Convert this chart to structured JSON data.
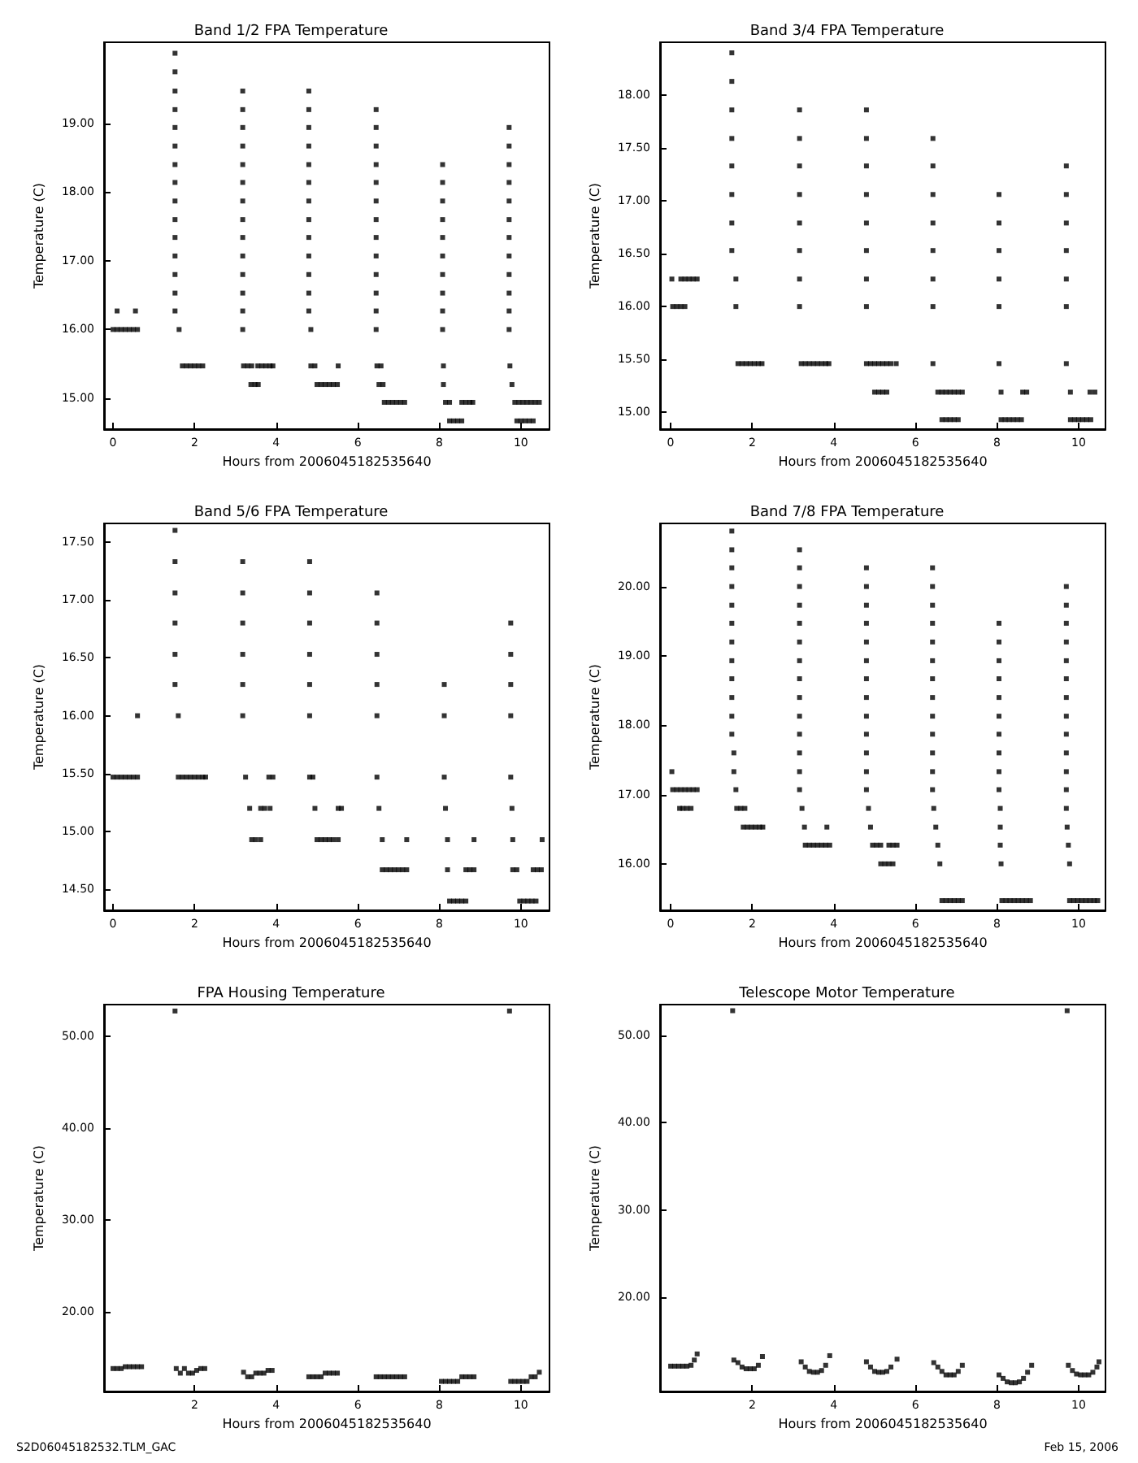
{
  "chart_data": [
    {
      "type": "scatter",
      "title": "Band 1/2 FPA Temperature",
      "xlabel": "Hours from 2006045182535640",
      "ylabel": "Temperature (C)",
      "marker": "square",
      "xlim": [
        -0.22,
        10.7
      ],
      "ylim": [
        14.55,
        20.18
      ],
      "xticks": [
        0,
        2,
        4,
        6,
        8,
        10
      ],
      "yticks": [
        {
          "value": 15,
          "label": "15.00"
        },
        {
          "value": 16,
          "label": "16.00"
        },
        {
          "value": 17,
          "label": "17.00"
        },
        {
          "value": 18,
          "label": "18.00"
        },
        {
          "value": 19,
          "label": "19.00"
        }
      ],
      "series": [
        {
          "color": "#000000",
          "x": [
            0,
            0.1,
            0.2,
            0.3,
            0.4,
            0.5,
            0.6
          ],
          "values": [
            16.0,
            16.0,
            16.0,
            16.0,
            16.0,
            16.0,
            16.0
          ]
        },
        {
          "color": "#000000",
          "x": [
            0.1,
            0.55
          ],
          "values": [
            16.27,
            16.27
          ]
        },
        {
          "color": "#000000",
          "x": [
            1.52,
            1.52,
            1.52,
            1.52,
            1.52,
            1.52,
            1.52,
            1.52,
            1.52,
            1.52,
            1.52,
            1.52,
            1.52,
            1.52,
            1.52
          ],
          "values": [
            20.02,
            19.75,
            19.47,
            19.2,
            18.94,
            18.67,
            18.4,
            18.14,
            17.87,
            17.6,
            17.34,
            17.07,
            16.8,
            16.53,
            16.27
          ]
        },
        {
          "color": "#000000",
          "x": [
            1.62,
            1.7,
            1.8,
            1.9,
            2.0,
            2.1,
            2.2
          ],
          "values": [
            16.0,
            15.47,
            15.47,
            15.47,
            15.47,
            15.47,
            15.47
          ]
        },
        {
          "color": "#000000",
          "x": [
            3.18,
            3.18,
            3.18,
            3.18,
            3.18,
            3.18,
            3.18,
            3.18,
            3.18,
            3.18,
            3.18,
            3.18,
            3.18,
            3.18
          ],
          "values": [
            19.47,
            19.2,
            18.94,
            18.67,
            18.4,
            18.14,
            17.87,
            17.6,
            17.34,
            17.07,
            16.8,
            16.53,
            16.27,
            16.0
          ]
        },
        {
          "color": "#000000",
          "x": [
            3.2,
            3.3,
            3.4,
            3.55,
            3.65,
            3.75,
            3.85,
            3.92
          ],
          "values": [
            15.47,
            15.47,
            15.47,
            15.47,
            15.47,
            15.47,
            15.47,
            15.47
          ]
        },
        {
          "color": "#000000",
          "x": [
            3.38,
            3.48,
            3.56
          ],
          "values": [
            15.2,
            15.2,
            15.2
          ]
        },
        {
          "color": "#000000",
          "x": [
            4.8,
            4.8,
            4.8,
            4.8,
            4.8,
            4.8,
            4.8,
            4.8,
            4.8,
            4.8,
            4.8,
            4.8,
            4.8
          ],
          "values": [
            19.47,
            19.2,
            18.94,
            18.67,
            18.4,
            18.14,
            17.87,
            17.6,
            17.34,
            17.07,
            16.8,
            16.53,
            16.27
          ]
        },
        {
          "color": "#000000",
          "x": [
            4.85,
            4.85,
            4.95,
            5.52
          ],
          "values": [
            16.0,
            15.47,
            15.47,
            15.47
          ]
        },
        {
          "color": "#000000",
          "x": [
            5.0,
            5.1,
            5.2,
            5.3,
            5.4,
            5.5
          ],
          "values": [
            15.2,
            15.2,
            15.2,
            15.2,
            15.2,
            15.2
          ]
        },
        {
          "color": "#000000",
          "x": [
            6.45,
            6.45,
            6.45,
            6.45,
            6.45,
            6.45,
            6.45,
            6.45,
            6.45,
            6.45,
            6.45,
            6.45,
            6.45
          ],
          "values": [
            19.2,
            18.94,
            18.67,
            18.4,
            18.14,
            17.87,
            17.6,
            17.34,
            17.07,
            16.8,
            16.53,
            16.27,
            16.0
          ]
        },
        {
          "color": "#000000",
          "x": [
            6.47,
            6.57,
            6.52,
            6.62
          ],
          "values": [
            15.47,
            15.47,
            15.2,
            15.2
          ]
        },
        {
          "color": "#000000",
          "x": [
            6.65,
            6.75,
            6.85,
            6.95,
            7.05,
            7.15
          ],
          "values": [
            14.94,
            14.94,
            14.94,
            14.94,
            14.94,
            14.94
          ]
        },
        {
          "color": "#000000",
          "x": [
            8.08,
            8.08,
            8.08,
            8.08,
            8.08,
            8.08,
            8.08,
            8.08,
            8.08,
            8.08,
            8.1,
            8.1
          ],
          "values": [
            18.4,
            18.14,
            17.87,
            17.6,
            17.34,
            17.07,
            16.8,
            16.53,
            16.27,
            16.0,
            15.47,
            15.2
          ]
        },
        {
          "color": "#000000",
          "x": [
            8.15,
            8.25,
            8.55,
            8.65,
            8.75,
            8.82
          ],
          "values": [
            14.94,
            14.94,
            14.94,
            14.94,
            14.94,
            14.94
          ]
        },
        {
          "color": "#000000",
          "x": [
            8.25,
            8.35,
            8.45,
            8.55
          ],
          "values": [
            14.67,
            14.67,
            14.67,
            14.67
          ]
        },
        {
          "color": "#000000",
          "x": [
            9.71,
            9.71,
            9.71,
            9.71,
            9.71,
            9.71,
            9.71,
            9.71,
            9.71,
            9.71,
            9.71,
            9.71
          ],
          "values": [
            18.94,
            18.67,
            18.4,
            18.14,
            17.87,
            17.6,
            17.34,
            17.07,
            16.8,
            16.53,
            16.27,
            16.0
          ]
        },
        {
          "color": "#000000",
          "x": [
            9.73,
            9.78
          ],
          "values": [
            15.47,
            15.2
          ]
        },
        {
          "color": "#000000",
          "x": [
            9.85,
            9.95,
            10.05,
            10.15,
            10.25,
            10.35,
            10.45
          ],
          "values": [
            14.94,
            14.94,
            14.94,
            14.94,
            14.94,
            14.94,
            14.94
          ]
        },
        {
          "color": "#000000",
          "x": [
            9.9,
            10.0,
            10.1,
            10.2,
            10.3
          ],
          "values": [
            14.67,
            14.67,
            14.67,
            14.67,
            14.67
          ]
        }
      ]
    },
    {
      "type": "scatter",
      "title": "Band 3/4 FPA Temperature",
      "xlabel": "Hours from 2006045182535640",
      "ylabel": "Temperature (C)",
      "marker": "square",
      "xlim": [
        -0.26,
        10.66
      ],
      "ylim": [
        14.84,
        18.5
      ],
      "xticks": [
        0,
        2,
        4,
        6,
        8,
        10
      ],
      "yticks": [
        {
          "value": 15,
          "label": "15.00"
        },
        {
          "value": 15.5,
          "label": "15.50"
        },
        {
          "value": 16,
          "label": "16.00"
        },
        {
          "value": 16.5,
          "label": "16.50"
        },
        {
          "value": 17,
          "label": "17.00"
        },
        {
          "value": 17.5,
          "label": "17.50"
        },
        {
          "value": 18,
          "label": "18.00"
        }
      ],
      "series": [
        {
          "color": "#000000",
          "x": [
            0.03,
            0.25,
            0.35,
            0.45,
            0.55,
            0.65
          ],
          "values": [
            16.26,
            16.26,
            16.26,
            16.26,
            16.26,
            16.26
          ]
        },
        {
          "color": "#000000",
          "x": [
            0.05,
            0.15,
            0.25,
            0.35
          ],
          "values": [
            16.0,
            16.0,
            16.0,
            16.0
          ]
        },
        {
          "color": "#000000",
          "x": [
            1.5,
            1.5,
            1.5,
            1.5,
            1.5,
            1.5,
            1.5,
            1.5
          ],
          "values": [
            18.4,
            18.13,
            17.86,
            17.59,
            17.33,
            17.06,
            16.79,
            16.53
          ]
        },
        {
          "color": "#000000",
          "x": [
            1.6,
            1.6
          ],
          "values": [
            16.26,
            16.0
          ]
        },
        {
          "color": "#000000",
          "x": [
            1.65,
            1.75,
            1.85,
            1.95,
            2.05,
            2.15,
            2.24
          ],
          "values": [
            15.46,
            15.46,
            15.46,
            15.46,
            15.46,
            15.46,
            15.46
          ]
        },
        {
          "color": "#000000",
          "x": [
            3.16,
            3.16,
            3.16,
            3.16,
            3.16,
            3.16,
            3.16,
            3.16
          ],
          "values": [
            17.86,
            17.59,
            17.33,
            17.06,
            16.79,
            16.53,
            16.26,
            16.0
          ]
        },
        {
          "color": "#000000",
          "x": [
            3.2,
            3.3,
            3.4,
            3.5,
            3.6,
            3.7,
            3.8,
            3.88
          ],
          "values": [
            15.46,
            15.46,
            15.46,
            15.46,
            15.46,
            15.46,
            15.46,
            15.46
          ]
        },
        {
          "color": "#000000",
          "x": [
            4.8,
            4.8,
            4.8,
            4.8,
            4.8,
            4.8,
            4.8,
            4.8
          ],
          "values": [
            17.86,
            17.59,
            17.33,
            17.06,
            16.79,
            16.53,
            16.26,
            16.0
          ]
        },
        {
          "color": "#000000",
          "x": [
            4.8,
            4.9,
            5.0,
            5.1,
            5.2,
            5.3,
            5.4,
            5.53
          ],
          "values": [
            15.46,
            15.46,
            15.46,
            15.46,
            15.46,
            15.46,
            15.46,
            15.46
          ]
        },
        {
          "color": "#000000",
          "x": [
            5.0,
            5.1,
            5.2,
            5.3
          ],
          "values": [
            15.19,
            15.19,
            15.19,
            15.19
          ]
        },
        {
          "color": "#000000",
          "x": [
            6.43,
            6.43,
            6.43,
            6.43,
            6.43,
            6.43,
            6.43,
            6.43
          ],
          "values": [
            17.59,
            17.33,
            17.06,
            16.79,
            16.53,
            16.26,
            16.0,
            15.46
          ]
        },
        {
          "color": "#000000",
          "x": [
            6.55,
            6.65,
            6.75,
            6.85,
            6.95,
            7.05,
            7.15
          ],
          "values": [
            15.19,
            15.19,
            15.19,
            15.19,
            15.19,
            15.19,
            15.19
          ]
        },
        {
          "color": "#000000",
          "x": [
            6.65,
            6.75,
            6.85,
            6.95,
            7.05
          ],
          "values": [
            14.93,
            14.93,
            14.93,
            14.93,
            14.93
          ]
        },
        {
          "color": "#000000",
          "x": [
            8.05,
            8.05,
            8.05,
            8.05,
            8.05,
            8.05
          ],
          "values": [
            17.06,
            16.79,
            16.53,
            16.26,
            16.0,
            15.46
          ]
        },
        {
          "color": "#000000",
          "x": [
            8.1,
            8.63,
            8.73
          ],
          "values": [
            15.19,
            15.19,
            15.19
          ]
        },
        {
          "color": "#000000",
          "x": [
            8.1,
            8.2,
            8.3,
            8.4,
            8.5,
            8.6
          ],
          "values": [
            14.93,
            14.93,
            14.93,
            14.93,
            14.93,
            14.93
          ]
        },
        {
          "color": "#000000",
          "x": [
            9.7,
            9.7,
            9.7,
            9.7,
            9.7,
            9.7,
            9.7
          ],
          "values": [
            17.33,
            17.06,
            16.79,
            16.53,
            16.26,
            16.0,
            15.46
          ]
        },
        {
          "color": "#000000",
          "x": [
            9.8,
            10.28,
            10.4
          ],
          "values": [
            15.19,
            15.19,
            15.19
          ]
        },
        {
          "color": "#000000",
          "x": [
            9.8,
            9.9,
            10.0,
            10.1,
            10.2,
            10.3
          ],
          "values": [
            14.93,
            14.93,
            14.93,
            14.93,
            14.93,
            14.93
          ]
        }
      ]
    },
    {
      "type": "scatter",
      "title": "Band 5/6 FPA Temperature",
      "xlabel": "Hours from 2006045182535640",
      "ylabel": "Temperature (C)",
      "marker": "square",
      "xlim": [
        -0.22,
        10.7
      ],
      "ylim": [
        14.32,
        17.66
      ],
      "xticks": [
        0,
        2,
        4,
        6,
        8,
        10
      ],
      "yticks": [
        {
          "value": 14.5,
          "label": "14.50"
        },
        {
          "value": 15,
          "label": "15.00"
        },
        {
          "value": 15.5,
          "label": "15.50"
        },
        {
          "value": 16,
          "label": "16.00"
        },
        {
          "value": 16.5,
          "label": "16.50"
        },
        {
          "value": 17,
          "label": "17.00"
        },
        {
          "value": 17.5,
          "label": "17.50"
        }
      ],
      "series": [
        {
          "color": "#000000",
          "x": [
            0,
            0.1,
            0.2,
            0.3,
            0.4,
            0.5,
            0.6
          ],
          "values": [
            15.47,
            15.47,
            15.47,
            15.47,
            15.47,
            15.47,
            15.47
          ]
        },
        {
          "color": "#000000",
          "x": [
            0.6
          ],
          "values": [
            16.0
          ]
        },
        {
          "color": "#000000",
          "x": [
            1.52,
            1.52,
            1.52,
            1.52,
            1.52,
            1.52
          ],
          "values": [
            17.6,
            17.33,
            17.06,
            16.8,
            16.53,
            16.27
          ]
        },
        {
          "color": "#000000",
          "x": [
            1.6,
            1.6,
            1.7,
            1.8,
            1.9,
            2.0,
            2.1,
            2.2,
            2.27
          ],
          "values": [
            16.0,
            15.47,
            15.47,
            15.47,
            15.47,
            15.47,
            15.47,
            15.47,
            15.47
          ]
        },
        {
          "color": "#000000",
          "x": [
            3.18,
            3.18,
            3.18,
            3.18,
            3.18,
            3.18
          ],
          "values": [
            17.33,
            17.06,
            16.8,
            16.53,
            16.27,
            16.0
          ]
        },
        {
          "color": "#000000",
          "x": [
            3.25,
            3.82,
            3.92
          ],
          "values": [
            15.47,
            15.47,
            15.47
          ]
        },
        {
          "color": "#000000",
          "x": [
            3.35,
            3.62,
            3.72,
            3.85
          ],
          "values": [
            15.2,
            15.2,
            15.2,
            15.2
          ]
        },
        {
          "color": "#000000",
          "x": [
            3.4,
            3.5,
            3.62
          ],
          "values": [
            14.93,
            14.93,
            14.93
          ]
        },
        {
          "color": "#000000",
          "x": [
            4.82,
            4.82,
            4.82,
            4.82,
            4.82,
            4.82
          ],
          "values": [
            17.33,
            17.06,
            16.8,
            16.53,
            16.27,
            16.0
          ]
        },
        {
          "color": "#000000",
          "x": [
            4.82,
            4.9,
            4.95,
            5.52,
            5.6
          ],
          "values": [
            15.47,
            15.47,
            15.2,
            15.2,
            15.2
          ]
        },
        {
          "color": "#000000",
          "x": [
            5.0,
            5.1,
            5.2,
            5.3,
            5.4,
            5.52
          ],
          "values": [
            14.93,
            14.93,
            14.93,
            14.93,
            14.93,
            14.93
          ]
        },
        {
          "color": "#000000",
          "x": [
            6.47,
            6.47,
            6.47,
            6.47,
            6.47,
            6.47
          ],
          "values": [
            17.06,
            16.8,
            16.53,
            16.27,
            16.0,
            15.47
          ]
        },
        {
          "color": "#000000",
          "x": [
            6.52,
            6.6,
            7.2
          ],
          "values": [
            15.2,
            14.93,
            14.93
          ]
        },
        {
          "color": "#000000",
          "x": [
            6.6,
            6.7,
            6.8,
            6.9,
            7.0,
            7.1,
            7.2
          ],
          "values": [
            14.67,
            14.67,
            14.67,
            14.67,
            14.67,
            14.67,
            14.67
          ]
        },
        {
          "color": "#000000",
          "x": [
            8.12,
            8.12,
            8.12
          ],
          "values": [
            16.27,
            16.0,
            15.47
          ]
        },
        {
          "color": "#000000",
          "x": [
            8.15,
            8.2,
            8.85
          ],
          "values": [
            15.2,
            14.93,
            14.93
          ]
        },
        {
          "color": "#000000",
          "x": [
            8.2,
            8.65,
            8.75,
            8.85
          ],
          "values": [
            14.67,
            14.67,
            14.67,
            14.67
          ]
        },
        {
          "color": "#000000",
          "x": [
            8.25,
            8.35,
            8.45,
            8.55,
            8.65
          ],
          "values": [
            14.4,
            14.4,
            14.4,
            14.4,
            14.4
          ]
        },
        {
          "color": "#000000",
          "x": [
            9.75,
            9.75,
            9.75,
            9.75,
            9.75
          ],
          "values": [
            16.8,
            16.53,
            16.27,
            16.0,
            15.47
          ]
        },
        {
          "color": "#000000",
          "x": [
            9.78,
            9.8,
            10.52
          ],
          "values": [
            15.2,
            14.93,
            14.93
          ]
        },
        {
          "color": "#000000",
          "x": [
            9.8,
            9.9,
            10.3,
            10.4,
            10.5
          ],
          "values": [
            14.67,
            14.67,
            14.67,
            14.67,
            14.67
          ]
        },
        {
          "color": "#000000",
          "x": [
            9.97,
            10.07,
            10.17,
            10.27,
            10.37
          ],
          "values": [
            14.4,
            14.4,
            14.4,
            14.4,
            14.4
          ]
        }
      ]
    },
    {
      "type": "scatter",
      "title": "Band 7/8 FPA Temperature",
      "xlabel": "Hours from 2006045182535640",
      "ylabel": "Temperature (C)",
      "marker": "square",
      "xlim": [
        -0.26,
        10.66
      ],
      "ylim": [
        15.33,
        20.91
      ],
      "xticks": [
        0,
        2,
        4,
        6,
        8,
        10
      ],
      "yticks": [
        {
          "value": 16,
          "label": "16.00"
        },
        {
          "value": 17,
          "label": "17.00"
        },
        {
          "value": 18,
          "label": "18.00"
        },
        {
          "value": 19,
          "label": "19.00"
        },
        {
          "value": 20,
          "label": "20.00"
        }
      ],
      "series": [
        {
          "color": "#000000",
          "x": [
            0.03
          ],
          "values": [
            17.33
          ]
        },
        {
          "color": "#000000",
          "x": [
            0.05,
            0.15,
            0.25,
            0.35,
            0.45,
            0.55,
            0.65
          ],
          "values": [
            17.07,
            17.07,
            17.07,
            17.07,
            17.07,
            17.07,
            17.07
          ]
        },
        {
          "color": "#000000",
          "x": [
            0.22,
            0.3,
            0.4,
            0.5
          ],
          "values": [
            16.8,
            16.8,
            16.8,
            16.8
          ]
        },
        {
          "color": "#000000",
          "x": [
            1.5,
            1.5,
            1.5,
            1.5,
            1.5,
            1.5,
            1.5,
            1.5,
            1.5,
            1.5,
            1.5,
            1.5
          ],
          "values": [
            20.8,
            20.53,
            20.27,
            20.0,
            19.73,
            19.47,
            19.2,
            18.93,
            18.67,
            18.4,
            18.13,
            17.87
          ]
        },
        {
          "color": "#000000",
          "x": [
            1.55,
            1.55,
            1.6
          ],
          "values": [
            17.6,
            17.33,
            17.07
          ]
        },
        {
          "color": "#000000",
          "x": [
            1.62,
            1.72,
            1.82
          ],
          "values": [
            16.8,
            16.8,
            16.8
          ]
        },
        {
          "color": "#000000",
          "x": [
            1.78,
            1.88,
            1.98,
            2.08,
            2.18,
            2.26
          ],
          "values": [
            16.53,
            16.53,
            16.53,
            16.53,
            16.53,
            16.53
          ]
        },
        {
          "color": "#000000",
          "x": [
            3.16,
            3.16,
            3.16,
            3.16,
            3.16,
            3.16,
            3.16,
            3.16,
            3.16,
            3.16,
            3.16,
            3.16,
            3.16,
            3.16
          ],
          "values": [
            20.53,
            20.27,
            20.0,
            19.73,
            19.47,
            19.2,
            18.93,
            18.67,
            18.4,
            18.13,
            17.87,
            17.6,
            17.33,
            17.07
          ]
        },
        {
          "color": "#000000",
          "x": [
            3.22,
            3.28,
            3.83
          ],
          "values": [
            16.8,
            16.53,
            16.53
          ]
        },
        {
          "color": "#000000",
          "x": [
            3.3,
            3.4,
            3.5,
            3.6,
            3.7,
            3.8,
            3.9
          ],
          "values": [
            16.27,
            16.27,
            16.27,
            16.27,
            16.27,
            16.27,
            16.27
          ]
        },
        {
          "color": "#000000",
          "x": [
            4.8,
            4.8,
            4.8,
            4.8,
            4.8,
            4.8,
            4.8,
            4.8,
            4.8,
            4.8,
            4.8,
            4.8,
            4.8
          ],
          "values": [
            20.27,
            20.0,
            19.73,
            19.47,
            19.2,
            18.93,
            18.67,
            18.4,
            18.13,
            17.87,
            17.6,
            17.33,
            17.07
          ]
        },
        {
          "color": "#000000",
          "x": [
            4.85,
            4.9
          ],
          "values": [
            16.8,
            16.53
          ]
        },
        {
          "color": "#000000",
          "x": [
            4.95,
            5.05,
            5.15,
            5.35,
            5.45,
            5.55
          ],
          "values": [
            16.27,
            16.27,
            16.27,
            16.27,
            16.27,
            16.27
          ]
        },
        {
          "color": "#000000",
          "x": [
            5.15,
            5.25,
            5.35,
            5.45
          ],
          "values": [
            16.0,
            16.0,
            16.0,
            16.0
          ]
        },
        {
          "color": "#000000",
          "x": [
            6.42,
            6.42,
            6.42,
            6.42,
            6.42,
            6.42,
            6.42,
            6.42,
            6.42,
            6.42,
            6.42,
            6.42,
            6.42
          ],
          "values": [
            20.27,
            20.0,
            19.73,
            19.47,
            19.2,
            18.93,
            18.67,
            18.4,
            18.13,
            17.87,
            17.6,
            17.33,
            17.07
          ]
        },
        {
          "color": "#000000",
          "x": [
            6.45,
            6.5,
            6.55,
            6.6
          ],
          "values": [
            16.8,
            16.53,
            16.27,
            16.0
          ]
        },
        {
          "color": "#000000",
          "x": [
            6.65,
            6.75,
            6.85,
            6.95,
            7.05,
            7.15
          ],
          "values": [
            15.47,
            15.47,
            15.47,
            15.47,
            15.47,
            15.47
          ]
        },
        {
          "color": "#000000",
          "x": [
            8.05,
            8.05,
            8.05,
            8.05,
            8.05,
            8.05,
            8.05,
            8.05,
            8.05,
            8.05
          ],
          "values": [
            19.47,
            19.2,
            18.93,
            18.67,
            18.4,
            18.13,
            17.87,
            17.6,
            17.33,
            17.07
          ]
        },
        {
          "color": "#000000",
          "x": [
            8.08,
            8.08,
            8.08,
            8.1
          ],
          "values": [
            16.8,
            16.53,
            16.27,
            16.0
          ]
        },
        {
          "color": "#000000",
          "x": [
            8.12,
            8.22,
            8.32,
            8.42,
            8.52,
            8.62,
            8.72,
            8.82
          ],
          "values": [
            15.47,
            15.47,
            15.47,
            15.47,
            15.47,
            15.47,
            15.47,
            15.47
          ]
        },
        {
          "color": "#000000",
          "x": [
            9.7,
            9.7,
            9.7,
            9.7,
            9.7,
            9.7,
            9.7,
            9.7,
            9.7,
            9.7,
            9.7,
            9.7,
            9.7
          ],
          "values": [
            20.0,
            19.73,
            19.47,
            19.2,
            18.93,
            18.67,
            18.4,
            18.13,
            17.87,
            17.6,
            17.33,
            17.07,
            16.8
          ]
        },
        {
          "color": "#000000",
          "x": [
            9.72,
            9.75,
            9.78
          ],
          "values": [
            16.53,
            16.27,
            16.0
          ]
        },
        {
          "color": "#000000",
          "x": [
            9.78,
            9.88,
            9.98,
            10.08,
            10.18,
            10.28,
            10.38,
            10.47
          ],
          "values": [
            15.47,
            15.47,
            15.47,
            15.47,
            15.47,
            15.47,
            15.47,
            15.47
          ]
        }
      ]
    },
    {
      "type": "scatter",
      "title": "FPA Housing Temperature",
      "xlabel": "Hours from 2006045182535640",
      "ylabel": "Temperature (C)",
      "marker": "square",
      "xlim": [
        -0.22,
        10.7
      ],
      "ylim": [
        11.3,
        53.5
      ],
      "xticks": [
        2,
        4,
        6,
        8,
        10
      ],
      "yticks": [
        {
          "value": 20,
          "label": "20.00"
        },
        {
          "value": 30,
          "label": "30.00"
        },
        {
          "value": 40,
          "label": "40.00"
        },
        {
          "value": 50,
          "label": "50.00"
        }
      ],
      "annotations": [
        "S2D06045182532.TLM_GAC"
      ],
      "series": [
        {
          "color": "#000000",
          "x": [
            1.52,
            9.72
          ],
          "values": [
            52.8,
            52.8
          ]
        },
        {
          "color": "#000000",
          "x": [
            0,
            0.1,
            0.2,
            0.3,
            0.4,
            0.5,
            0.6,
            0.7
          ],
          "values": [
            13.8,
            13.8,
            13.8,
            14.0,
            14.0,
            14.0,
            14.0,
            14.0
          ]
        },
        {
          "color": "#000000",
          "x": [
            1.55,
            1.65,
            1.75,
            1.85,
            1.95,
            2.05,
            2.15,
            2.25
          ],
          "values": [
            13.8,
            13.3,
            13.8,
            13.3,
            13.3,
            13.6,
            13.8,
            13.8
          ]
        },
        {
          "color": "#000000",
          "x": [
            3.2,
            3.3,
            3.4,
            3.5,
            3.6,
            3.7,
            3.8,
            3.9
          ],
          "values": [
            13.4,
            12.9,
            12.9,
            13.3,
            13.3,
            13.3,
            13.6,
            13.6
          ]
        },
        {
          "color": "#000000",
          "x": [
            4.8,
            4.9,
            5.0,
            5.1,
            5.2,
            5.3,
            5.4,
            5.5
          ],
          "values": [
            12.9,
            12.9,
            12.9,
            12.9,
            13.3,
            13.3,
            13.3,
            13.3
          ]
        },
        {
          "color": "#000000",
          "x": [
            6.45,
            6.55,
            6.65,
            6.75,
            6.85,
            6.95,
            7.05,
            7.15
          ],
          "values": [
            12.9,
            12.9,
            12.9,
            12.9,
            12.9,
            12.9,
            12.9,
            12.9
          ]
        },
        {
          "color": "#000000",
          "x": [
            8.05,
            8.15,
            8.25,
            8.35,
            8.45,
            8.55,
            8.65,
            8.75,
            8.85
          ],
          "values": [
            12.4,
            12.4,
            12.4,
            12.4,
            12.4,
            12.9,
            12.9,
            12.9,
            12.9
          ]
        },
        {
          "color": "#000000",
          "x": [
            9.75,
            9.85,
            9.95,
            10.05,
            10.15,
            10.25,
            10.35,
            10.45
          ],
          "values": [
            12.4,
            12.4,
            12.4,
            12.4,
            12.4,
            12.9,
            12.9,
            13.4
          ]
        }
      ]
    },
    {
      "type": "scatter",
      "title": "Telescope Motor Temperature",
      "xlabel": "Hours from 2006045182535640",
      "ylabel": "Temperature (C)",
      "marker": "square",
      "xlim": [
        -0.26,
        10.66
      ],
      "ylim": [
        9.2,
        53.5
      ],
      "xticks": [
        2,
        4,
        6,
        8,
        10
      ],
      "yticks": [
        {
          "value": 20,
          "label": "20.00"
        },
        {
          "value": 30,
          "label": "30.00"
        },
        {
          "value": 40,
          "label": "40.00"
        },
        {
          "value": 50,
          "label": "50.00"
        }
      ],
      "annotations": [
        "Feb 15, 2006"
      ],
      "series": [
        {
          "color": "#000000",
          "x": [
            1.52,
            9.72
          ],
          "values": [
            52.8,
            52.8
          ]
        },
        {
          "color": "#000000",
          "x": [
            0,
            0.1,
            0.2,
            0.3,
            0.4,
            0.5,
            0.58,
            0.65
          ],
          "values": [
            12.1,
            12.1,
            12.1,
            12.1,
            12.1,
            12.2,
            12.8,
            13.5
          ]
        },
        {
          "color": "#000000",
          "x": [
            1.55,
            1.65,
            1.75,
            1.85,
            1.95,
            2.05,
            2.15,
            2.25
          ],
          "values": [
            12.8,
            12.5,
            12.0,
            11.8,
            11.8,
            11.8,
            12.2,
            13.2
          ]
        },
        {
          "color": "#000000",
          "x": [
            3.2,
            3.3,
            3.4,
            3.5,
            3.6,
            3.7,
            3.8,
            3.9
          ],
          "values": [
            12.6,
            12.0,
            11.5,
            11.4,
            11.4,
            11.6,
            12.2,
            13.3
          ]
        },
        {
          "color": "#000000",
          "x": [
            4.8,
            4.9,
            5.0,
            5.1,
            5.2,
            5.3,
            5.4,
            5.55
          ],
          "values": [
            12.6,
            12.0,
            11.5,
            11.4,
            11.4,
            11.5,
            12.0,
            12.9
          ]
        },
        {
          "color": "#000000",
          "x": [
            6.45,
            6.55,
            6.65,
            6.75,
            6.85,
            6.95,
            7.05,
            7.15
          ],
          "values": [
            12.5,
            12.0,
            11.5,
            11.1,
            11.1,
            11.1,
            11.5,
            12.2
          ]
        },
        {
          "color": "#000000",
          "x": [
            8.05,
            8.15,
            8.25,
            8.35,
            8.45,
            8.55,
            8.65,
            8.75,
            8.85
          ],
          "values": [
            11.1,
            10.7,
            10.3,
            10.2,
            10.2,
            10.3,
            10.7,
            11.4,
            12.2
          ]
        },
        {
          "color": "#000000",
          "x": [
            9.75,
            9.85,
            9.95,
            10.05,
            10.15,
            10.25,
            10.35,
            10.45,
            10.5
          ],
          "values": [
            12.2,
            11.6,
            11.2,
            11.1,
            11.1,
            11.1,
            11.4,
            12.0,
            12.6
          ]
        }
      ]
    }
  ]
}
